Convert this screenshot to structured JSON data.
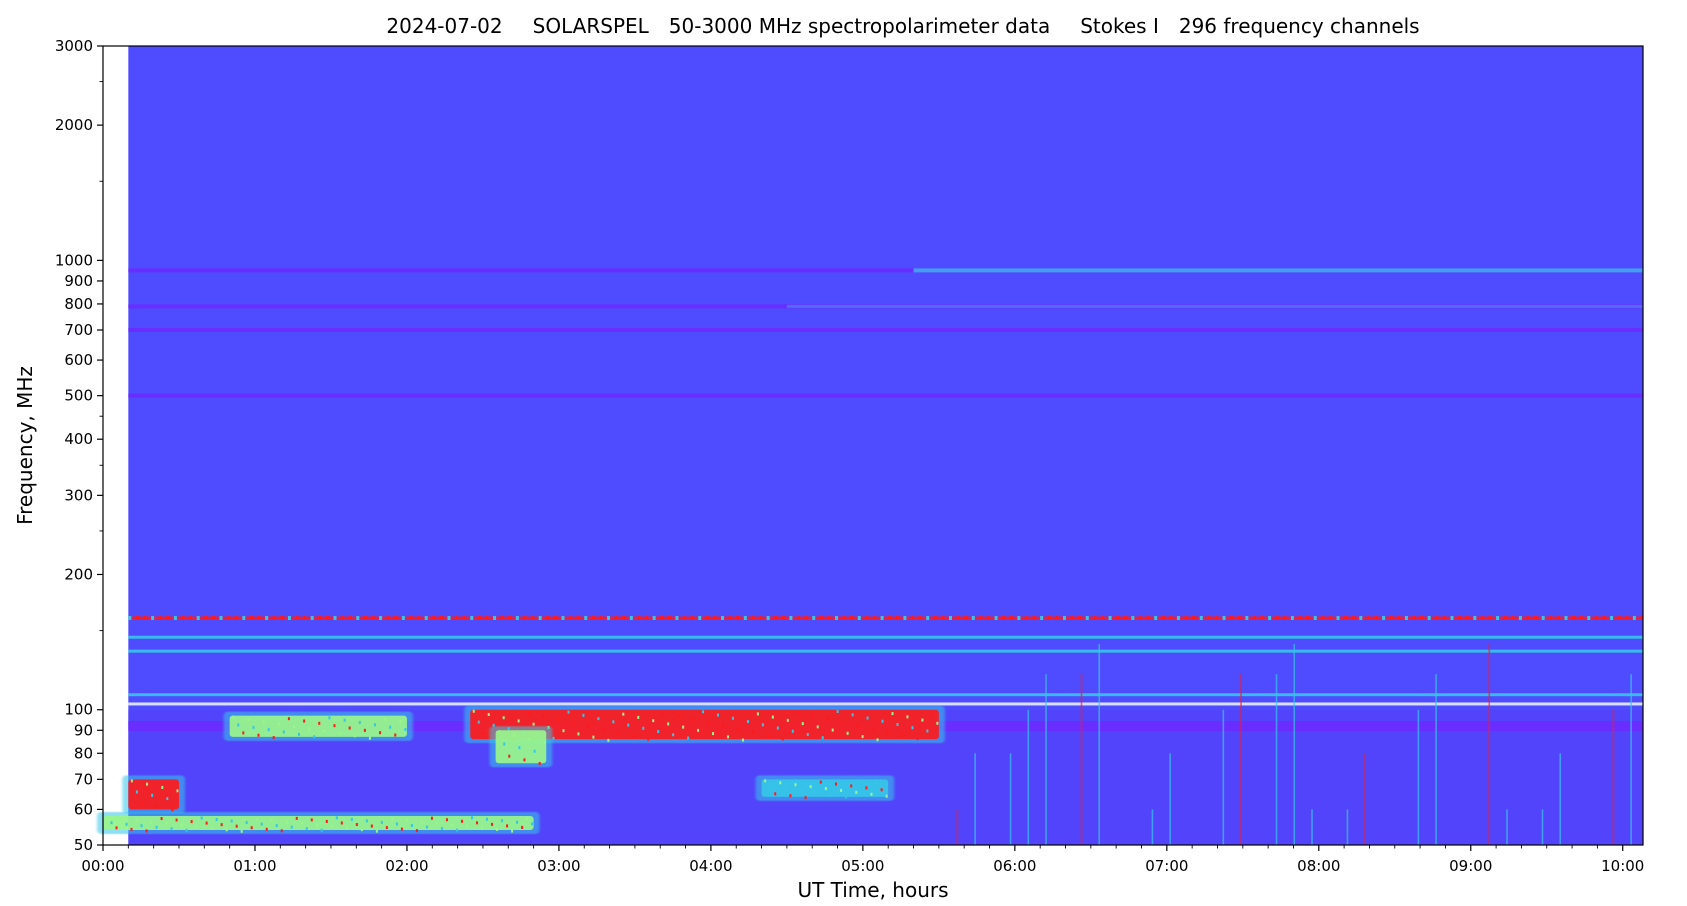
{
  "chart_data": {
    "type": "heatmap",
    "title": {
      "date": "2024-07-02",
      "instrument": "SOLARSPEL",
      "description": "50-3000 MHz spectropolarimeter data",
      "stokes": "Stokes I",
      "channels": "296 frequency channels"
    },
    "xlabel": "UT Time, hours",
    "ylabel": "Frequency, MHz",
    "x_scale": "time",
    "y_scale": "log",
    "xlim": [
      "00:00",
      "10:08"
    ],
    "ylim": [
      50,
      3000
    ],
    "data_start": "00:10",
    "x_ticks": [
      "00:00",
      "01:00",
      "02:00",
      "03:00",
      "04:00",
      "05:00",
      "06:00",
      "07:00",
      "08:00",
      "09:00",
      "10:00"
    ],
    "y_ticks": [
      50,
      60,
      70,
      80,
      90,
      100,
      200,
      300,
      400,
      500,
      600,
      700,
      800,
      900,
      1000,
      2000,
      3000
    ],
    "y_minor_ticks": [
      150,
      250,
      350,
      450,
      1500,
      2500
    ],
    "colormap": "rainbow",
    "colors": {
      "background_level": "#4f4bff",
      "low_level": "#6b2bff",
      "medium_level": "#35c6e8",
      "high_level": "#9af58a",
      "saturated_level": "#ff1a1a"
    },
    "features": [
      {
        "feature": "type III/IV burst cluster",
        "start": "02:25",
        "end": "05:30",
        "freq_low": 86,
        "freq_high": 100,
        "level": "saturated"
      },
      {
        "feature": "burst patch",
        "start": "00:50",
        "end": "02:00",
        "freq_low": 87,
        "freq_high": 97,
        "level": "high"
      },
      {
        "feature": "burst patch",
        "start": "02:35",
        "end": "02:55",
        "freq_low": 76,
        "freq_high": 90,
        "level": "high"
      },
      {
        "feature": "burst patch",
        "start": "04:20",
        "end": "05:10",
        "freq_low": 64,
        "freq_high": 70,
        "level": "medium"
      },
      {
        "feature": "low-frequency band",
        "start": "00:00",
        "end": "02:50",
        "freq_low": 54,
        "freq_high": 58,
        "level": "high"
      },
      {
        "feature": "early burst",
        "start": "00:10",
        "end": "00:30",
        "freq_low": 60,
        "freq_high": 70,
        "level": "saturated"
      }
    ],
    "interference_lines_mhz": [
      950,
      790,
      700,
      500,
      160,
      145,
      135,
      108,
      103,
      92
    ]
  }
}
